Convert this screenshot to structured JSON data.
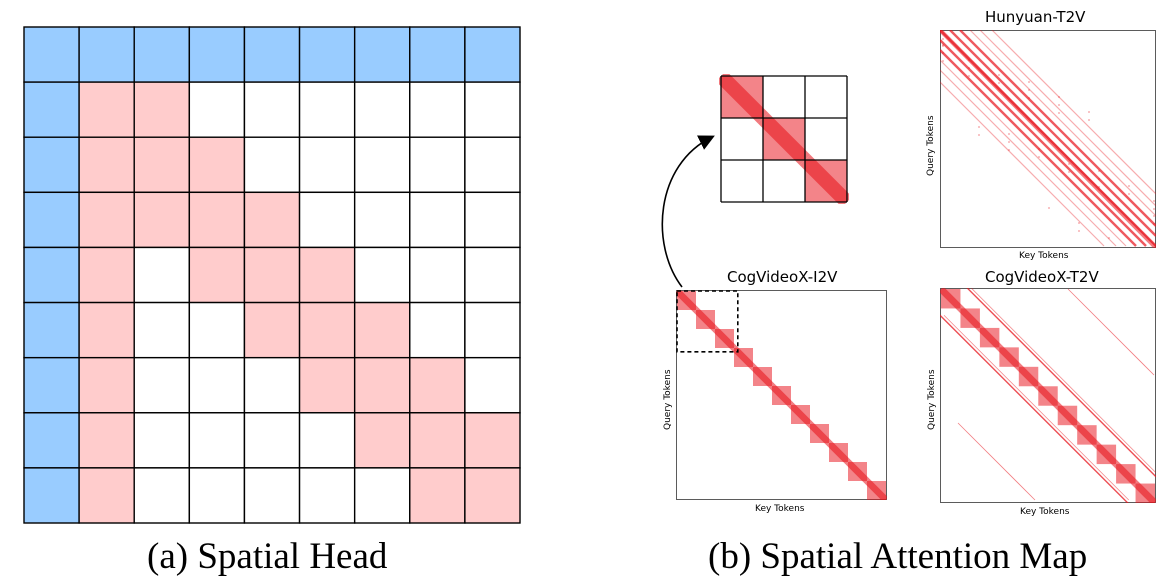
{
  "captions": {
    "a": "(a) Spatial Head",
    "b": "(b) Spatial Attention Map"
  },
  "maps": {
    "hunyuan_t2v": {
      "title": "Hunyuan-T2V",
      "xlabel": "Key Tokens",
      "ylabel": "Query Tokens"
    },
    "cogvideox_i2v": {
      "title": "CogVideoX-I2V",
      "xlabel": "Key Tokens",
      "ylabel": "Query Tokens"
    },
    "cogvideox_t2v": {
      "title": "CogVideoX-T2V",
      "xlabel": "Key Tokens",
      "ylabel": "Query Tokens"
    }
  },
  "colors": {
    "blue": "#99ccff",
    "pink": "#ffcccc",
    "red": "#e8141c",
    "grid_line": "#000000"
  },
  "spatial_head": {
    "rows": 9,
    "cols": 9,
    "pattern": [
      "BBBBBBBBB",
      "BPPWWWWWW",
      "BPPPWWWWW",
      "BPPPPWWWW",
      "BPWPPPWWW",
      "BPWWPPPWW",
      "BPWWWPPPW",
      "BPWWWWPPP",
      "BPWWWWWPP"
    ]
  }
}
